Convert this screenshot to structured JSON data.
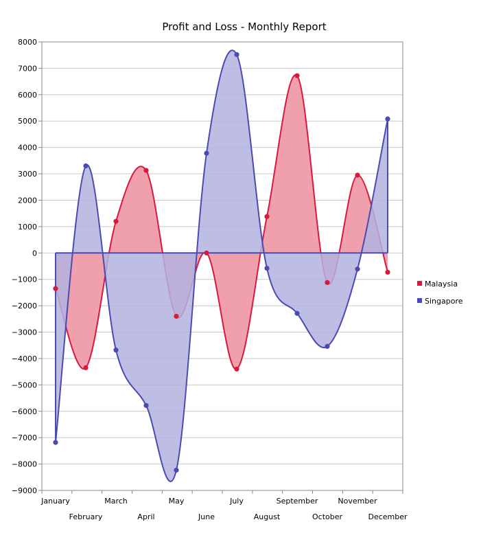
{
  "chart_data": {
    "type": "area",
    "title": "Profit and Loss - Monthly Report",
    "xlabel": "",
    "ylabel": "",
    "categories": [
      "January",
      "February",
      "March",
      "April",
      "May",
      "June",
      "July",
      "August",
      "September",
      "October",
      "November",
      "December"
    ],
    "ylim": [
      -9000,
      8000
    ],
    "yticks": [
      8000,
      7000,
      6000,
      5000,
      4000,
      3000,
      2000,
      1000,
      0,
      -1000,
      -2000,
      -3000,
      -4000,
      -5000,
      -6000,
      -7000,
      -8000,
      -9000
    ],
    "grid": true,
    "legend": "right",
    "series": [
      {
        "name": "Malaysia",
        "color": "#d7193c",
        "fill": "#f0a0ad",
        "values": [
          -1350,
          -4350,
          1200,
          3130,
          -2400,
          0,
          -4400,
          1380,
          6720,
          -1120,
          2950,
          -730
        ]
      },
      {
        "name": "Singapore",
        "color": "#4a4ab0",
        "fill": "#b3b3e0",
        "values": [
          -7180,
          3300,
          -3680,
          -5780,
          -8230,
          3780,
          7520,
          -580,
          -2290,
          -3540,
          -610,
          5080
        ]
      }
    ]
  }
}
